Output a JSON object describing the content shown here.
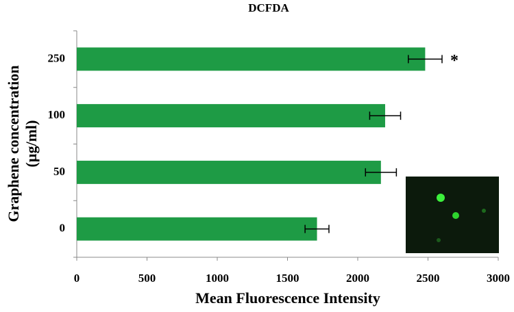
{
  "chart_data": {
    "type": "hbar",
    "title": "DCFDA",
    "categories": [
      "0",
      "50",
      "100",
      "250"
    ],
    "series": [
      {
        "name": "DCFDA",
        "color": "#1e9b45",
        "values": [
          1710,
          2165,
          2195,
          2480
        ],
        "errors": [
          85,
          110,
          110,
          120
        ]
      }
    ],
    "xlim": [
      0,
      3000
    ],
    "xticks": [
      0,
      500,
      1000,
      1500,
      2000,
      2500,
      3000
    ],
    "xlabel": "Mean Fluorescence Intensity",
    "ylabel": [
      "Graphene concentration",
      "(µg/ml)"
    ],
    "annotations": [
      {
        "text": "*",
        "category": "250"
      }
    ]
  }
}
